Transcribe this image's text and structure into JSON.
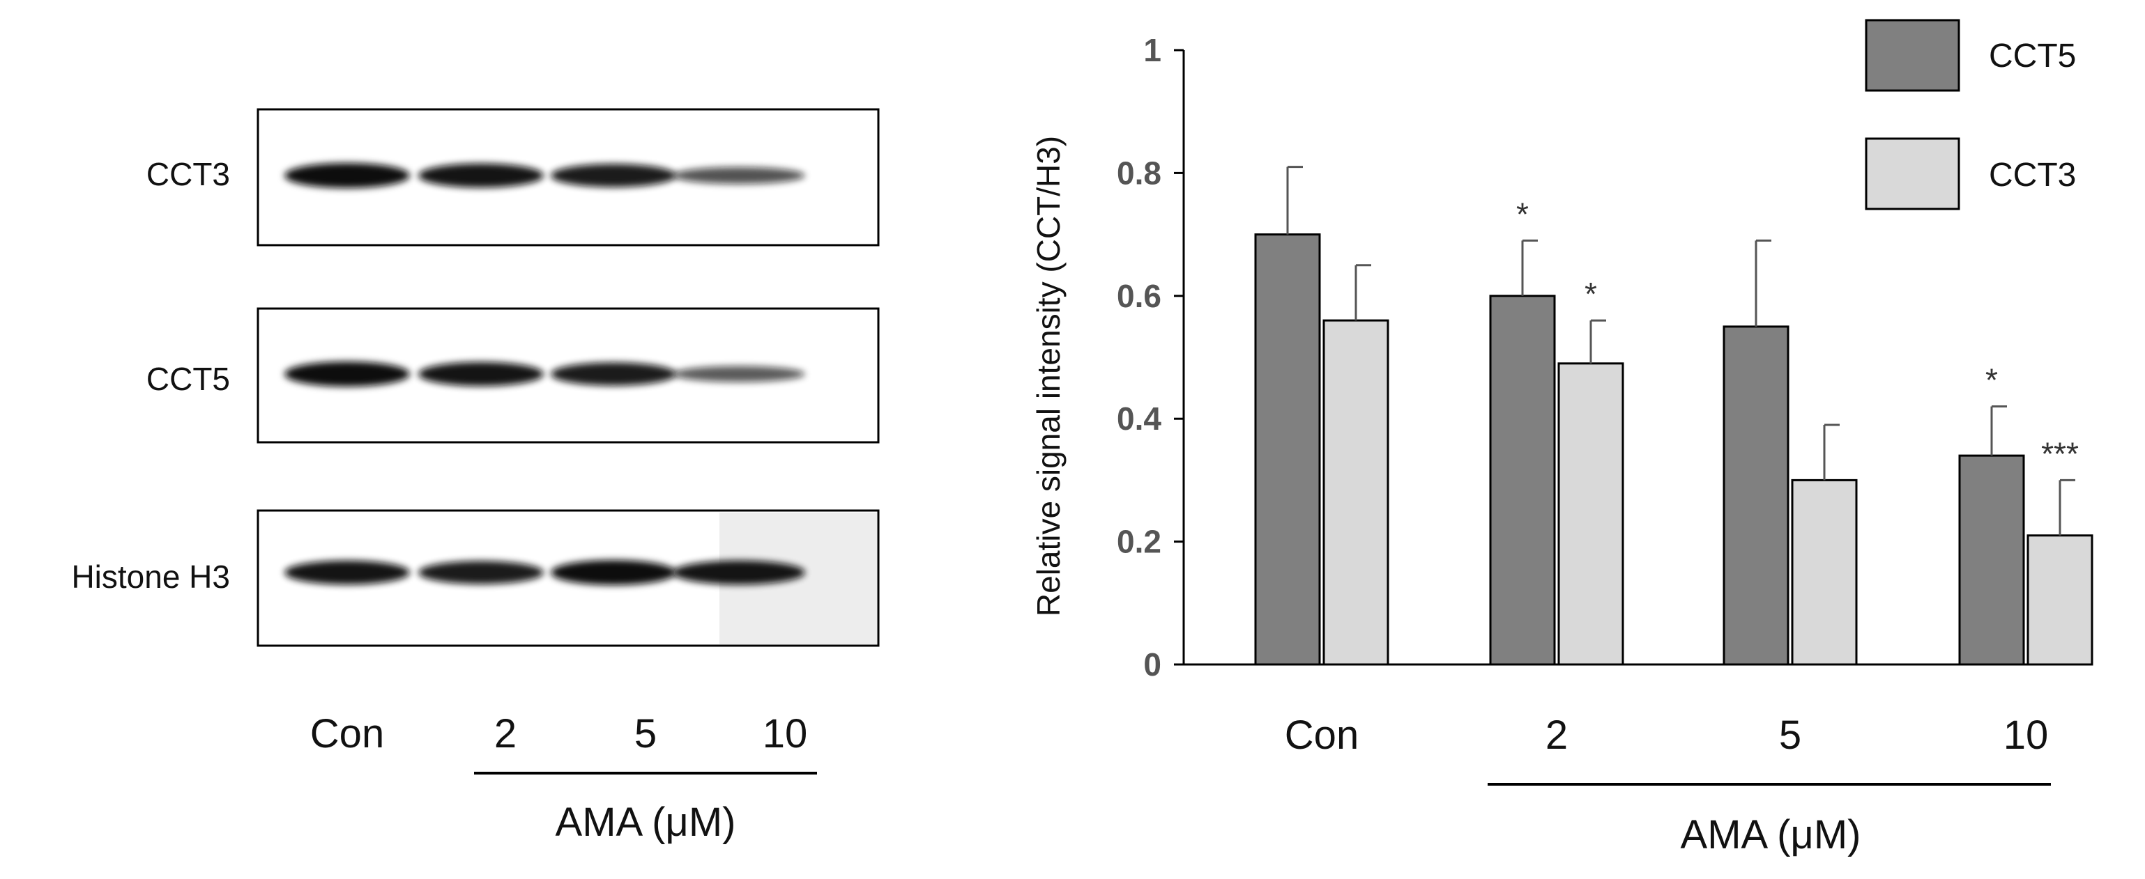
{
  "blot": {
    "rows": [
      {
        "label": "CCT3",
        "intensities": [
          1.0,
          0.95,
          0.9,
          0.55
        ]
      },
      {
        "label": "CCT5",
        "intensities": [
          1.0,
          0.95,
          0.9,
          0.5
        ]
      },
      {
        "label": "Histone H3",
        "intensities": [
          0.95,
          0.9,
          1.0,
          0.95
        ]
      }
    ],
    "lanes": [
      "Con",
      "2",
      "5",
      "10"
    ],
    "treatment_label": "AMA (μM)"
  },
  "chart_data": {
    "type": "bar",
    "categories": [
      "Con",
      "2",
      "5",
      "10"
    ],
    "series": [
      {
        "name": "CCT5",
        "values": [
          0.7,
          0.6,
          0.55,
          0.34
        ],
        "errors": [
          0.11,
          0.09,
          0.14,
          0.08
        ],
        "significance": [
          "",
          "*",
          "",
          "*"
        ],
        "color": "#808080"
      },
      {
        "name": "CCT3",
        "values": [
          0.56,
          0.49,
          0.3,
          0.21
        ],
        "errors": [
          0.09,
          0.07,
          0.09,
          0.09
        ],
        "significance": [
          "",
          "*",
          "",
          "***"
        ],
        "color": "#d9d9d9"
      }
    ],
    "title": "",
    "xlabel": "AMA (μM)",
    "ylabel": "Relative signal intensity (CCT/H3)",
    "ylim": [
      0,
      1
    ],
    "yticks": [
      0,
      0.2,
      0.4,
      0.6,
      0.8,
      1
    ],
    "ytick_labels": [
      "0",
      "0.2",
      "0.4",
      "0.6",
      "0.8",
      "1"
    ],
    "legend_position": "top-right"
  }
}
